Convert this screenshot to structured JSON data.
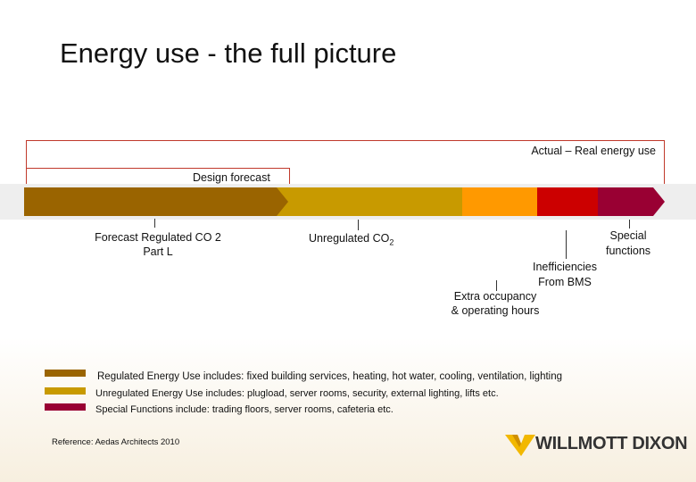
{
  "header": {
    "title": "Energy use - the full picture"
  },
  "bands": {
    "actual": "Actual – Real energy use",
    "design": "Design forecast"
  },
  "labels": {
    "regulated": [
      "Forecast Regulated CO 2",
      "Part L"
    ],
    "unregulated": {
      "text": "Unregulated CO",
      "sub": "2"
    },
    "special": [
      "Special",
      "functions"
    ],
    "inefficiencies": [
      "Inefficiencies",
      "From BMS"
    ],
    "occupancy": [
      "Extra occupancy",
      "& operating hours"
    ]
  },
  "legend": [
    "Regulated Energy Use includes: fixed building services, heating, hot water, cooling, ventilation, lighting",
    "Unregulated Energy Use includes: plugload, server rooms, security, external lighting, lifts etc.",
    "Special Functions include: trading floors, server rooms, cafeteria etc."
  ],
  "footer": {
    "reference": "Reference:  Aedas Architects 2010",
    "logo": "WILLMOTT DIXON"
  }
}
